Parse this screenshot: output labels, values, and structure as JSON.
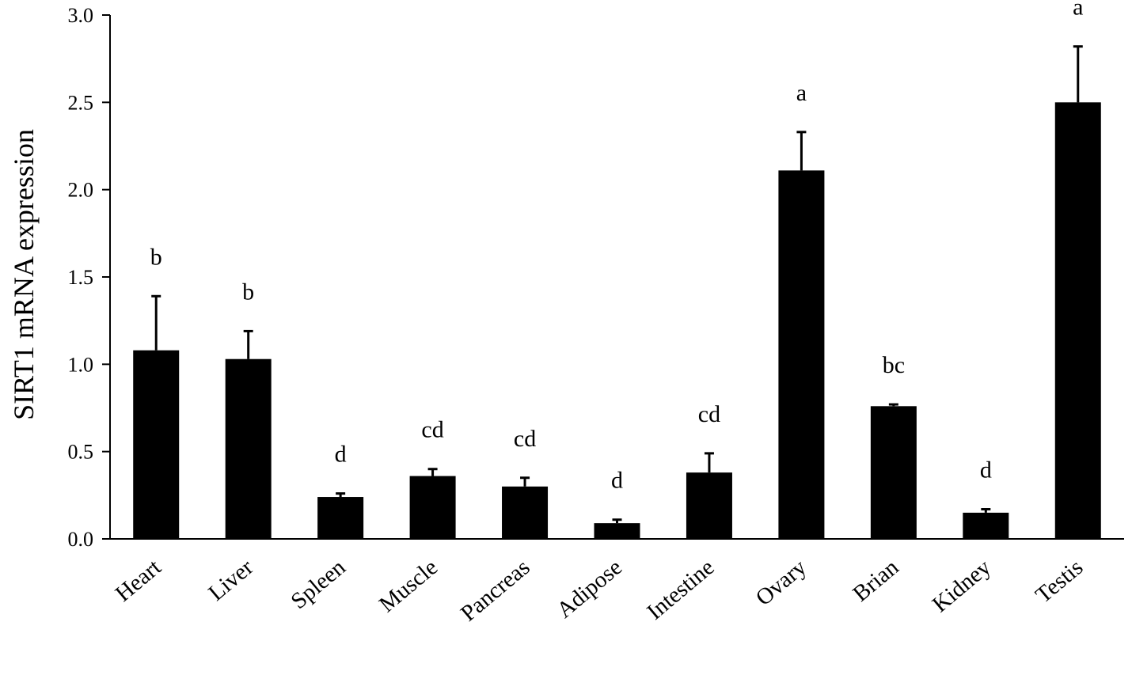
{
  "chart_data": {
    "type": "bar",
    "title": "",
    "xlabel": "",
    "ylabel": "SIRT1 mRNA expression",
    "ylim": [
      0,
      3.0
    ],
    "yticks": [
      "0.0",
      "0.5",
      "1.0",
      "1.5",
      "2.0",
      "2.5",
      "3.0"
    ],
    "grid": false,
    "legend": "none",
    "bar_color": "#000000",
    "categories": [
      "Heart",
      "Liver",
      "Spleen",
      "Muscle",
      "Pancreas",
      "Adipose",
      "Intestine",
      "Ovary",
      "Brian",
      "Kidney",
      "Testis"
    ],
    "values": [
      1.08,
      1.03,
      0.24,
      0.36,
      0.3,
      0.09,
      0.38,
      2.11,
      0.76,
      0.15,
      2.5
    ],
    "errors": [
      0.31,
      0.16,
      0.02,
      0.04,
      0.05,
      0.02,
      0.11,
      0.22,
      0.01,
      0.02,
      0.32
    ],
    "significance": [
      "b",
      "b",
      "d",
      "cd",
      "cd",
      "d",
      "cd",
      "a",
      "bc",
      "d",
      "a"
    ]
  }
}
